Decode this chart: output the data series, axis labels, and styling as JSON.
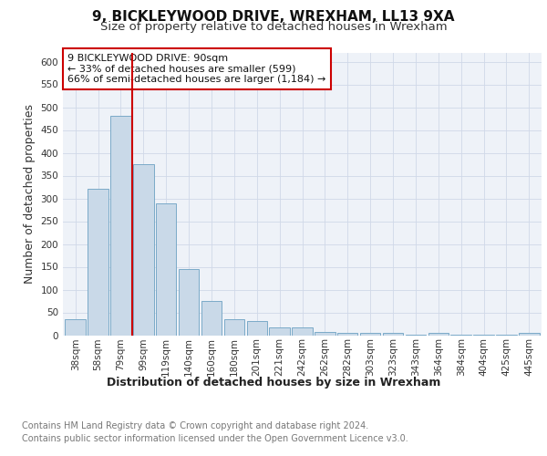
{
  "title1": "9, BICKLEYWOOD DRIVE, WREXHAM, LL13 9XA",
  "title2": "Size of property relative to detached houses in Wrexham",
  "xlabel": "Distribution of detached houses by size in Wrexham",
  "ylabel": "Number of detached properties",
  "categories": [
    "38sqm",
    "58sqm",
    "79sqm",
    "99sqm",
    "119sqm",
    "140sqm",
    "160sqm",
    "180sqm",
    "201sqm",
    "221sqm",
    "242sqm",
    "262sqm",
    "282sqm",
    "303sqm",
    "323sqm",
    "343sqm",
    "364sqm",
    "384sqm",
    "404sqm",
    "425sqm",
    "445sqm"
  ],
  "values": [
    35,
    322,
    482,
    375,
    289,
    145,
    76,
    35,
    31,
    18,
    18,
    8,
    5,
    5,
    5,
    2,
    5,
    2,
    2,
    2,
    5
  ],
  "bar_color": "#c9d9e8",
  "bar_edge_color": "#7aaac8",
  "grid_color": "#d0d8e8",
  "background_color": "#eef2f8",
  "red_line_x": 2.5,
  "annotation_text": "9 BICKLEYWOOD DRIVE: 90sqm\n← 33% of detached houses are smaller (599)\n66% of semi-detached houses are larger (1,184) →",
  "annotation_box_color": "#ffffff",
  "annotation_box_edge": "#cc0000",
  "ylim": [
    0,
    620
  ],
  "yticks": [
    0,
    50,
    100,
    150,
    200,
    250,
    300,
    350,
    400,
    450,
    500,
    550,
    600
  ],
  "footer_line1": "Contains HM Land Registry data © Crown copyright and database right 2024.",
  "footer_line2": "Contains public sector information licensed under the Open Government Licence v3.0.",
  "title1_fontsize": 11,
  "title2_fontsize": 9.5,
  "axis_label_fontsize": 9,
  "tick_fontsize": 7.5,
  "annotation_fontsize": 8,
  "footer_fontsize": 7
}
